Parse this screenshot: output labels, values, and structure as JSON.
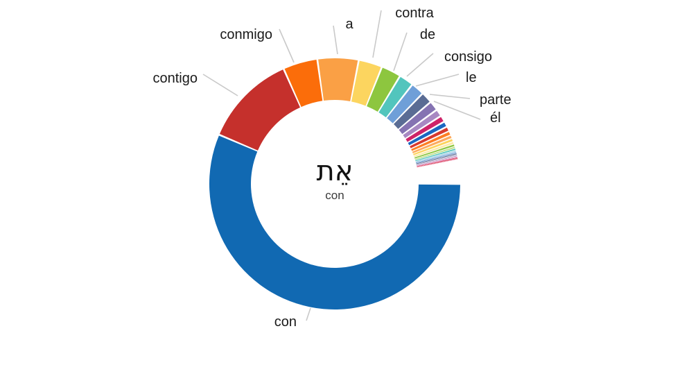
{
  "center": {
    "hebrew": "אֵת",
    "gloss": "con"
  },
  "colors": {
    "background": "#ffffff",
    "leader_line": "#c9c9c9",
    "label_text": "#1a1a1a"
  },
  "chart_data": {
    "type": "pie",
    "variant": "donut",
    "title": "",
    "center_word": "אֵת",
    "center_gloss": "con",
    "angle_unit": "degrees clockwise from 12 o'clock",
    "slices": [
      {
        "id": "con",
        "label": "con",
        "color": "#1169b2",
        "start_deg": 90,
        "end_deg": 293,
        "share_pct": 56.4
      },
      {
        "id": "contigo",
        "label": "contigo",
        "color": "#c5302c",
        "start_deg": 293,
        "end_deg": 336,
        "share_pct": 11.9
      },
      {
        "id": "conmigo",
        "label": "conmigo",
        "color": "#fb6d0a",
        "start_deg": 336,
        "end_deg": 352,
        "share_pct": 4.4
      },
      {
        "id": "a",
        "label": "a",
        "color": "#faa045",
        "start_deg": 352,
        "end_deg": 371,
        "share_pct": 5.3
      },
      {
        "id": "contra",
        "label": "contra",
        "color": "#fcd55f",
        "start_deg": 371,
        "end_deg": 382,
        "share_pct": 3.1
      },
      {
        "id": "de",
        "label": "de",
        "color": "#8dc63f",
        "start_deg": 382,
        "end_deg": 391.2,
        "share_pct": 2.6
      },
      {
        "id": "consigo",
        "label": "consigo",
        "color": "#52c5bd",
        "start_deg": 391.2,
        "end_deg": 398,
        "share_pct": 1.9
      },
      {
        "id": "le",
        "label": "le",
        "color": "#6f9fd8",
        "start_deg": 398,
        "end_deg": 404.2,
        "share_pct": 1.7
      },
      {
        "id": "parte",
        "label": "parte",
        "color": "#5a6c94",
        "start_deg": 404.2,
        "end_deg": 409.5,
        "share_pct": 1.5
      },
      {
        "id": "el",
        "label": "él",
        "color": "#8573b2",
        "start_deg": 409.5,
        "end_deg": 414,
        "share_pct": 1.25
      },
      {
        "id": "t1",
        "label": "",
        "color": "#a888c2",
        "start_deg": 414,
        "end_deg": 417.4,
        "share_pct": 0.94
      },
      {
        "id": "t2",
        "label": "",
        "color": "#ce2368",
        "start_deg": 417.4,
        "end_deg": 420.4,
        "share_pct": 0.83
      },
      {
        "id": "t3",
        "label": "",
        "color": "#1a67c1",
        "start_deg": 420.4,
        "end_deg": 423.0,
        "share_pct": 0.72
      },
      {
        "id": "t4",
        "label": "",
        "color": "#d6392f",
        "start_deg": 423.0,
        "end_deg": 425.25,
        "share_pct": 0.63
      },
      {
        "id": "t5",
        "label": "",
        "color": "#fd7e23",
        "start_deg": 425.25,
        "end_deg": 427.2,
        "share_pct": 0.54
      },
      {
        "id": "t6",
        "label": "",
        "color": "#fdaa5e",
        "start_deg": 427.2,
        "end_deg": 428.85,
        "share_pct": 0.46
      },
      {
        "id": "t7",
        "label": "",
        "color": "#fdd45e",
        "start_deg": 428.85,
        "end_deg": 430.3,
        "share_pct": 0.4
      },
      {
        "id": "t8",
        "label": "",
        "color": "#fde9a9",
        "start_deg": 430.3,
        "end_deg": 431.55,
        "share_pct": 0.35
      },
      {
        "id": "t9",
        "label": "",
        "color": "#8dc63f",
        "start_deg": 431.55,
        "end_deg": 432.65,
        "share_pct": 0.31
      },
      {
        "id": "t10",
        "label": "",
        "color": "#bfdf8f",
        "start_deg": 432.65,
        "end_deg": 433.6,
        "share_pct": 0.26
      },
      {
        "id": "t11",
        "label": "",
        "color": "#52c5bd",
        "start_deg": 433.6,
        "end_deg": 434.45,
        "share_pct": 0.24
      },
      {
        "id": "t12",
        "label": "",
        "color": "#a5cfe4",
        "start_deg": 434.45,
        "end_deg": 435.2,
        "share_pct": 0.21
      },
      {
        "id": "t13",
        "label": "",
        "color": "#6f9fd8",
        "start_deg": 435.2,
        "end_deg": 435.85,
        "share_pct": 0.18
      },
      {
        "id": "t14",
        "label": "",
        "color": "#5a6c94",
        "start_deg": 435.85,
        "end_deg": 436.45,
        "share_pct": 0.17
      },
      {
        "id": "t15",
        "label": "",
        "color": "#a9a6c0",
        "start_deg": 436.45,
        "end_deg": 436.95,
        "share_pct": 0.14
      },
      {
        "id": "t16",
        "label": "",
        "color": "#b59cc9",
        "start_deg": 436.95,
        "end_deg": 437.4,
        "share_pct": 0.13
      },
      {
        "id": "t17",
        "label": "",
        "color": "#e891bc",
        "start_deg": 437.4,
        "end_deg": 437.8,
        "share_pct": 0.11
      },
      {
        "id": "t18",
        "label": "",
        "color": "#ce2368",
        "start_deg": 437.8,
        "end_deg": 438.15,
        "share_pct": 0.1
      },
      {
        "id": "t19",
        "label": "",
        "color": "#d6392f",
        "start_deg": 438.15,
        "end_deg": 438.45,
        "share_pct": 0.08
      },
      {
        "id": "t20",
        "label": "",
        "color": "#e8649c",
        "start_deg": 438.45,
        "end_deg": 438.7,
        "share_pct": 0.07
      }
    ]
  }
}
